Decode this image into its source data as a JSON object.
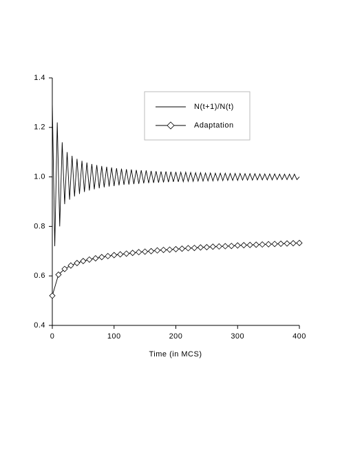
{
  "chart_data": {
    "type": "line",
    "xlabel": "Time (in MCS)",
    "xlim": [
      0,
      400
    ],
    "xticks": [
      0,
      100,
      200,
      300,
      400
    ],
    "ylim": [
      0.4,
      1.4
    ],
    "yticks": [
      0.4,
      0.6,
      0.8,
      {
        "value": 1.0,
        "label": "1.0"
      },
      1.2,
      1.4
    ],
    "legend": "top-center",
    "series": [
      {
        "name": "N(t+1)/N(t)",
        "color": "#000000",
        "marker": "none",
        "x": [
          0,
          4,
          8,
          12,
          16,
          20,
          24,
          28,
          32,
          36,
          40,
          44,
          48,
          52,
          56,
          60,
          64,
          68,
          72,
          76,
          80,
          84,
          88,
          92,
          96,
          100,
          104,
          108,
          112,
          116,
          120,
          124,
          128,
          132,
          136,
          140,
          144,
          148,
          152,
          156,
          160,
          164,
          168,
          172,
          176,
          180,
          184,
          188,
          192,
          196,
          200,
          204,
          208,
          212,
          216,
          220,
          224,
          228,
          232,
          236,
          240,
          244,
          248,
          252,
          256,
          260,
          264,
          268,
          272,
          276,
          280,
          284,
          288,
          292,
          296,
          300,
          304,
          308,
          312,
          316,
          320,
          324,
          328,
          332,
          336,
          340,
          344,
          348,
          352,
          356,
          360,
          364,
          368,
          372,
          376,
          380,
          384,
          388,
          392,
          396,
          400
        ],
        "values": [
          1.3,
          0.72,
          1.22,
          0.8,
          1.14,
          0.89,
          1.1,
          0.908,
          1.085,
          0.921,
          1.073,
          0.931,
          1.065,
          0.939,
          1.058,
          0.945,
          1.052,
          0.95,
          1.048,
          0.954,
          1.044,
          0.958,
          1.041,
          0.961,
          1.038,
          0.963,
          1.035,
          0.966,
          1.033,
          0.968,
          1.031,
          0.969,
          1.03,
          0.971,
          1.028,
          0.972,
          1.027,
          0.974,
          1.026,
          0.975,
          1.024,
          0.976,
          1.023,
          0.977,
          1.022,
          0.978,
          1.022,
          0.979,
          1.021,
          0.98,
          1.02,
          0.98,
          1.019,
          0.981,
          1.019,
          0.982,
          1.018,
          0.982,
          1.017,
          0.983,
          1.017,
          0.983,
          1.016,
          0.984,
          1.016,
          0.984,
          1.015,
          0.985,
          1.015,
          0.985,
          1.015,
          0.986,
          1.014,
          0.986,
          1.014,
          0.986,
          1.014,
          0.987,
          1.013,
          0.987,
          1.013,
          0.987,
          1.013,
          0.988,
          1.012,
          0.988,
          1.012,
          0.988,
          1.012,
          0.988,
          1.012,
          0.989,
          1.011,
          0.989,
          1.011,
          0.989,
          1.011,
          0.989,
          1.011,
          0.989,
          1.0
        ]
      },
      {
        "name": "Adaptation",
        "color": "#000000",
        "marker": "diamond",
        "x": [
          0,
          10,
          20,
          30,
          40,
          50,
          60,
          70,
          80,
          90,
          100,
          110,
          120,
          130,
          140,
          150,
          160,
          170,
          180,
          190,
          200,
          210,
          220,
          230,
          240,
          250,
          260,
          270,
          280,
          290,
          300,
          310,
          320,
          330,
          340,
          350,
          360,
          370,
          380,
          390,
          400
        ],
        "values": [
          0.52,
          0.605,
          0.628,
          0.642,
          0.652,
          0.66,
          0.666,
          0.671,
          0.676,
          0.68,
          0.684,
          0.687,
          0.69,
          0.693,
          0.696,
          0.698,
          0.7,
          0.703,
          0.705,
          0.706,
          0.708,
          0.71,
          0.712,
          0.713,
          0.715,
          0.716,
          0.718,
          0.719,
          0.72,
          0.721,
          0.723,
          0.724,
          0.725,
          0.726,
          0.727,
          0.728,
          0.729,
          0.73,
          0.731,
          0.732,
          0.733
        ]
      }
    ]
  }
}
